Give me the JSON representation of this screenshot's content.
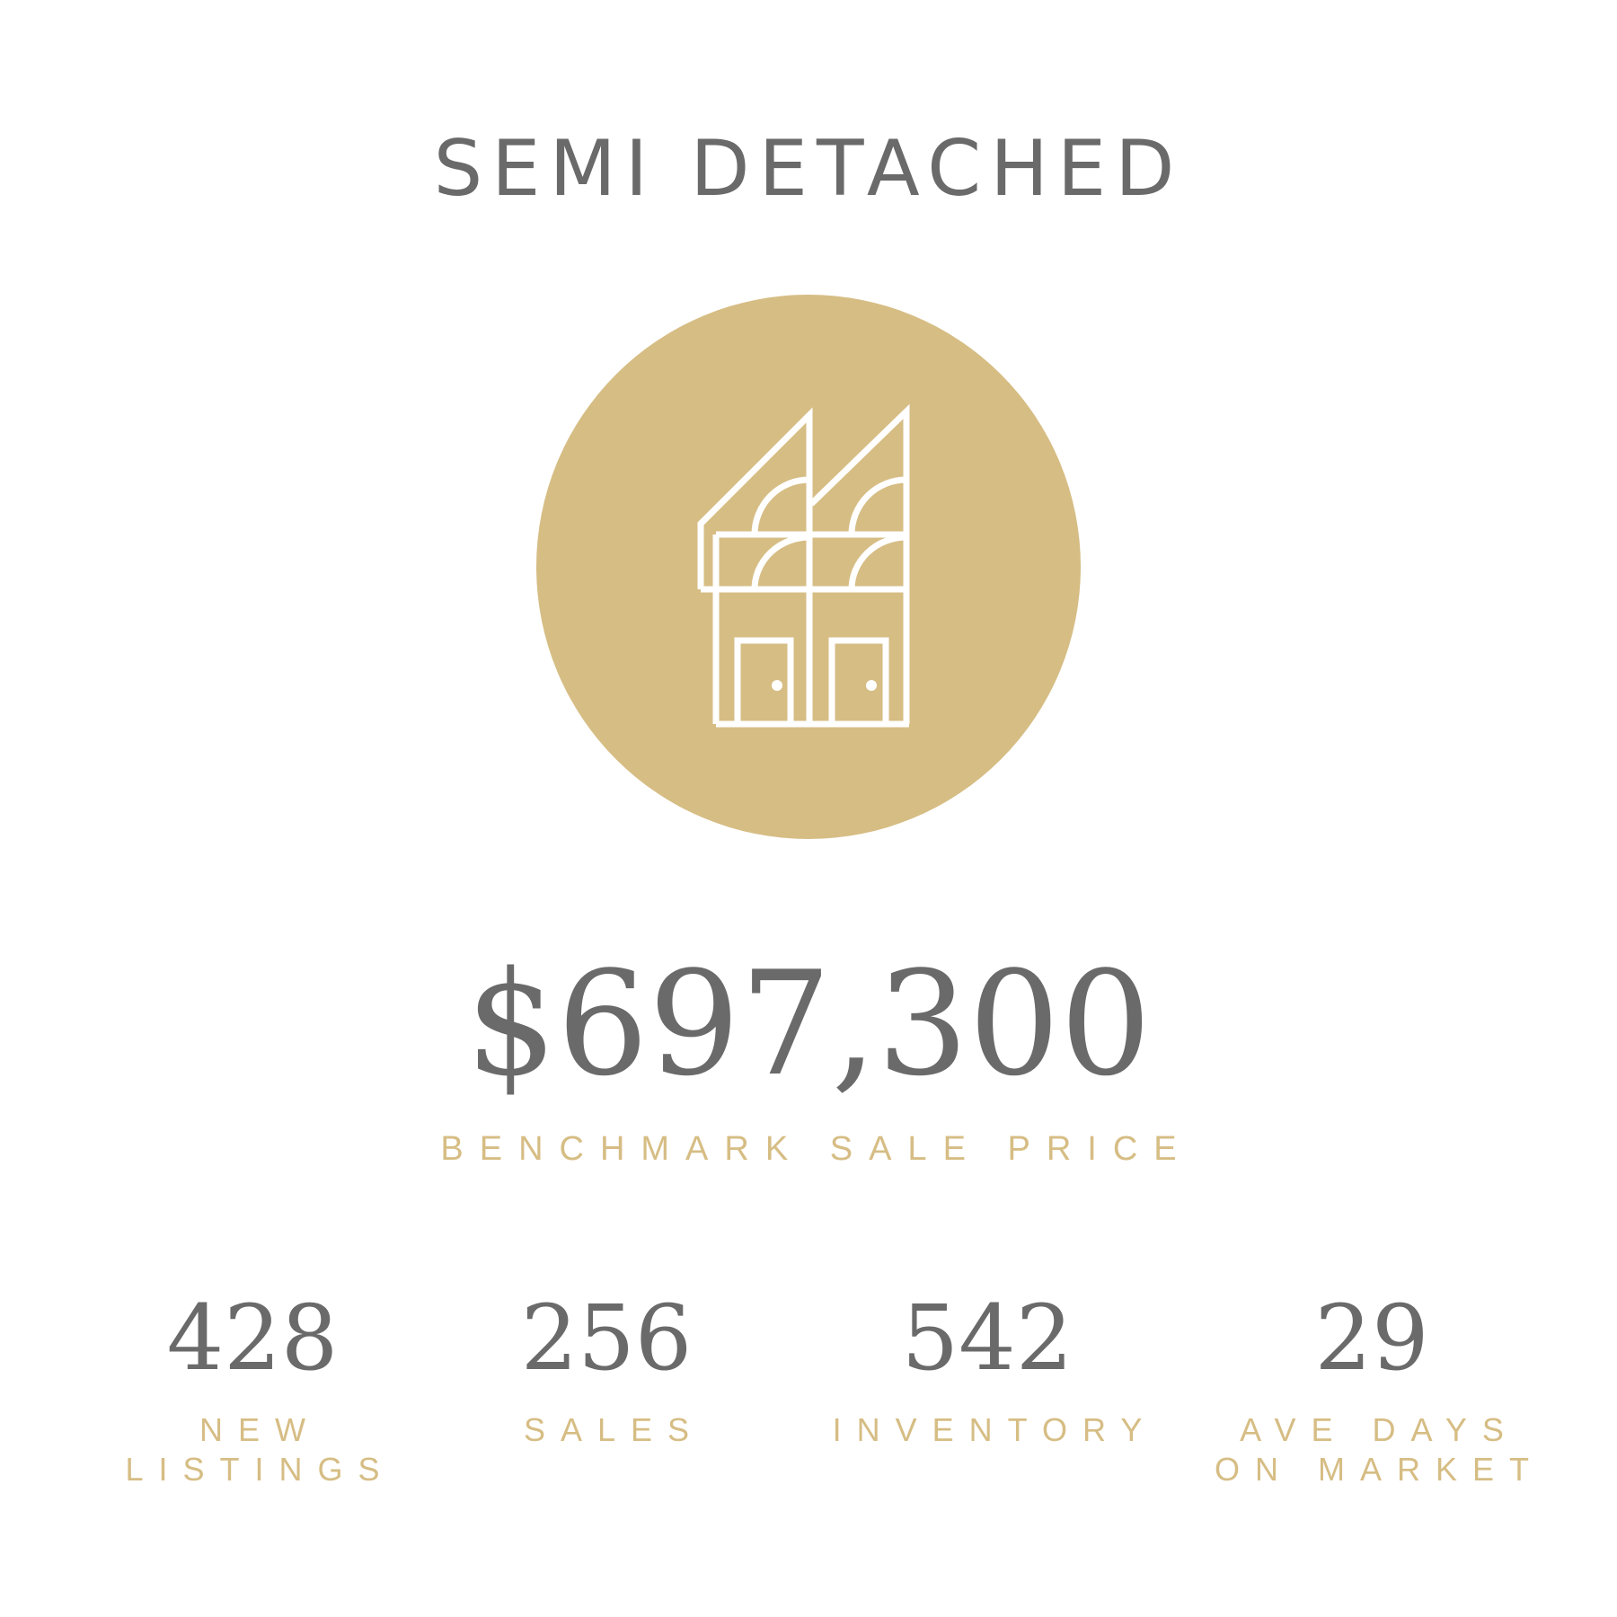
{
  "title": "SEMI DETACHED",
  "icon": "semi-detached-house-icon",
  "colors": {
    "accent": "#d6bd84",
    "text": "#6a6a6a"
  },
  "benchmark": {
    "value": "$697,300",
    "label": "BENCHMARK SALE PRICE"
  },
  "stats": [
    {
      "value": "428",
      "label_line1": "NEW",
      "label_line2": "LISTINGS"
    },
    {
      "value": "256",
      "label_line1": "SALES",
      "label_line2": ""
    },
    {
      "value": "542",
      "label_line1": "INVENTORY",
      "label_line2": ""
    },
    {
      "value": "29",
      "label_line1": "AVE DAYS",
      "label_line2": "ON MARKET"
    }
  ]
}
